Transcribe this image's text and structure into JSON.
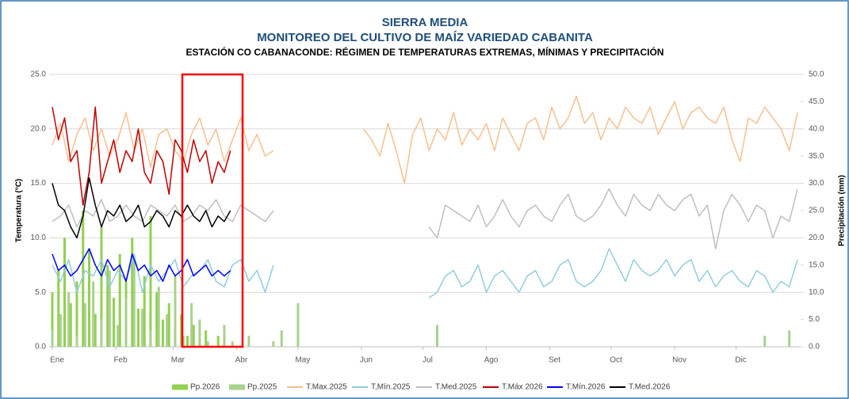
{
  "chart_data": {
    "type": "line",
    "title": "SIERRA MEDIA",
    "subtitle": "MONITOREO DEL CULTIVO DE MAÍZ VARIEDAD CABANITA",
    "heading": "ESTACIÓN CO CABANACONDE: RÉGIMEN DE TEMPERATURAS EXTREMAS, MÍNIMAS Y PRECIPITACIÓN",
    "ylabel": "Temperatura (°C)",
    "y2label": "Precipitación (mm)",
    "xlim": [
      1,
      365
    ],
    "xticks": [
      {
        "value": 1,
        "label": "Ene"
      },
      {
        "value": 32,
        "label": "Feb"
      },
      {
        "value": 60,
        "label": "Mar"
      },
      {
        "value": 91,
        "label": "Abr"
      },
      {
        "value": 121,
        "label": "May"
      },
      {
        "value": 152,
        "label": "Jun"
      },
      {
        "value": 182,
        "label": "Jul"
      },
      {
        "value": 213,
        "label": "Ago"
      },
      {
        "value": 244,
        "label": "Set"
      },
      {
        "value": 274,
        "label": "Oct"
      },
      {
        "value": 305,
        "label": "Nov"
      },
      {
        "value": 335,
        "label": "Dic"
      }
    ],
    "ylim": [
      0,
      25
    ],
    "yticks": [
      {
        "value": 0,
        "label": "0.0"
      },
      {
        "value": 5,
        "label": "5.0"
      },
      {
        "value": 10,
        "label": "10.0"
      },
      {
        "value": 15,
        "label": "15.0"
      },
      {
        "value": 20,
        "label": "20.0"
      },
      {
        "value": 25,
        "label": "25.0"
      }
    ],
    "y2lim": [
      0,
      50
    ],
    "y2ticks": [
      {
        "value": 0,
        "label": "0.0"
      },
      {
        "value": 5,
        "label": "5.0"
      },
      {
        "value": 10,
        "label": "10.0"
      },
      {
        "value": 15,
        "label": "15.0"
      },
      {
        "value": 20,
        "label": "20.0"
      },
      {
        "value": 25,
        "label": "25.0"
      },
      {
        "value": 30,
        "label": "30.0"
      },
      {
        "value": 35,
        "label": "35.0"
      },
      {
        "value": 40,
        "label": "40.0"
      },
      {
        "value": 45,
        "label": "45.0"
      },
      {
        "value": 50,
        "label": "50.0"
      }
    ],
    "grid": true,
    "series": [
      {
        "name": "Pp.2026",
        "type": "bar",
        "axis": "y2",
        "color": "#92d050",
        "x": [
          1,
          4,
          7,
          10,
          13,
          16,
          19,
          22,
          25,
          28,
          31,
          34,
          37,
          40,
          43,
          46,
          49,
          52,
          55,
          58,
          61,
          64,
          67,
          70,
          73,
          76,
          79,
          82,
          85,
          88
        ],
        "values": [
          10,
          14,
          20,
          8,
          12,
          25,
          18,
          6,
          22,
          15,
          9,
          17,
          12,
          20,
          7,
          13,
          24,
          10,
          5,
          8,
          3,
          6,
          2,
          4,
          1,
          3,
          0,
          2,
          1,
          0
        ]
      },
      {
        "name": "Pp.2025",
        "type": "bar",
        "axis": "y2",
        "color": "#a9d18e",
        "x": [
          1,
          5,
          9,
          13,
          17,
          21,
          25,
          29,
          33,
          37,
          41,
          45,
          49,
          53,
          57,
          61,
          65,
          69,
          73,
          77,
          81,
          85,
          89,
          93,
          97,
          101,
          105,
          109,
          113,
          117,
          121,
          125,
          129,
          133,
          137,
          141,
          145,
          149,
          153,
          157,
          161,
          165,
          169,
          173,
          177,
          181,
          185,
          189,
          193,
          197,
          201,
          205,
          209,
          213,
          217,
          221,
          225,
          229,
          233,
          237,
          241,
          245,
          249,
          253,
          257,
          261,
          265,
          269,
          273,
          277,
          281,
          285,
          289,
          293,
          297,
          301,
          305,
          309,
          313,
          317,
          321,
          325,
          329,
          333,
          337,
          341,
          345,
          349,
          353,
          357,
          361,
          365
        ],
        "values": [
          3,
          6,
          10,
          2,
          8,
          12,
          5,
          14,
          4,
          9,
          16,
          7,
          3,
          11,
          6,
          13,
          2,
          8,
          5,
          1,
          0,
          4,
          1,
          0,
          2,
          0,
          0,
          1,
          3,
          0,
          8,
          0,
          0,
          0,
          0,
          0,
          0,
          0,
          0,
          0,
          0,
          0,
          0,
          0,
          0,
          0,
          0,
          4,
          0,
          0,
          0,
          0,
          0,
          0,
          0,
          0,
          0,
          0,
          0,
          0,
          0,
          0,
          0,
          0,
          0,
          0,
          0,
          0,
          0,
          0,
          0,
          0,
          0,
          0,
          0,
          0,
          0,
          0,
          0,
          0,
          0,
          0,
          0,
          0,
          0,
          0,
          0,
          2,
          0,
          0,
          3,
          0
        ]
      },
      {
        "name": "T.Max.2025",
        "color": "#f8c08f",
        "x": [
          1,
          5,
          9,
          13,
          17,
          21,
          25,
          29,
          33,
          37,
          41,
          45,
          49,
          53,
          57,
          61,
          65,
          69,
          73,
          77,
          81,
          85,
          89,
          93,
          97,
          101,
          105,
          109,
          113,
          117,
          121,
          125,
          129,
          133,
          137,
          141,
          145,
          149,
          153,
          157,
          161,
          165,
          169,
          173,
          177,
          181,
          185,
          189,
          193,
          197,
          201,
          205,
          209,
          213,
          217,
          221,
          225,
          229,
          233,
          237,
          241,
          245,
          249,
          253,
          257,
          261,
          265,
          269,
          273,
          277,
          281,
          285,
          289,
          293,
          297,
          301,
          305,
          309,
          313,
          317,
          321,
          325,
          329,
          333,
          337,
          341,
          345,
          349,
          353,
          357,
          361,
          365
        ],
        "values": [
          18.5,
          20.5,
          17,
          19.5,
          21,
          18,
          20,
          17.5,
          19,
          21.5,
          18,
          20,
          16.5,
          19.5,
          20,
          18,
          17,
          19.5,
          21,
          18.5,
          20,
          17,
          19,
          21,
          18,
          19.5,
          17.5,
          18,
          null,
          null,
          null,
          null,
          null,
          null,
          null,
          null,
          null,
          null,
          20,
          19,
          17.5,
          20.5,
          18,
          15,
          19.5,
          21,
          18,
          20,
          19,
          21.5,
          18.5,
          20,
          19,
          20.5,
          18,
          21,
          19.5,
          18,
          20.5,
          21,
          19,
          22,
          20,
          21,
          23,
          20.5,
          21.5,
          19,
          21,
          20,
          22,
          21,
          20.5,
          22,
          19.5,
          21,
          22.5,
          20,
          21.5,
          22,
          21,
          20.5,
          22,
          19,
          17,
          21,
          20.5,
          22,
          21,
          20,
          18,
          21.5
        ]
      },
      {
        "name": "T,Mín.2025",
        "color": "#92cddc",
        "x": [
          1,
          5,
          9,
          13,
          17,
          21,
          25,
          29,
          33,
          37,
          41,
          45,
          49,
          53,
          57,
          61,
          65,
          69,
          73,
          77,
          81,
          85,
          89,
          93,
          97,
          101,
          105,
          109,
          113,
          117,
          121,
          125,
          129,
          133,
          137,
          141,
          145,
          149,
          153,
          157,
          161,
          165,
          169,
          173,
          177,
          181,
          185,
          189,
          193,
          197,
          201,
          205,
          209,
          213,
          217,
          221,
          225,
          229,
          233,
          237,
          241,
          245,
          249,
          253,
          257,
          261,
          265,
          269,
          273,
          277,
          281,
          285,
          289,
          293,
          297,
          301,
          305,
          309,
          313,
          317,
          321,
          325,
          329,
          333,
          337,
          341,
          345,
          349,
          353,
          357,
          361,
          365
        ],
        "values": [
          7.5,
          6,
          8,
          5,
          7,
          6.5,
          8,
          5.5,
          7,
          6,
          8.5,
          5,
          7.5,
          6,
          7,
          8,
          5.5,
          6.5,
          7,
          8,
          6,
          5.5,
          7.5,
          8,
          6,
          7,
          5,
          7.5,
          null,
          null,
          null,
          null,
          null,
          null,
          null,
          null,
          null,
          null,
          null,
          null,
          null,
          null,
          null,
          null,
          null,
          null,
          4.5,
          5,
          6.5,
          7,
          5.5,
          6,
          7.5,
          5,
          6.5,
          7,
          6,
          5,
          6.5,
          7,
          5.5,
          6,
          7.5,
          8,
          6,
          5.5,
          6,
          7,
          9,
          7.5,
          6,
          8,
          7,
          6.5,
          7,
          8,
          6.5,
          7.5,
          8,
          6,
          7,
          5.5,
          6.5,
          7,
          6,
          5.5,
          7,
          6.5,
          5,
          6,
          5.5,
          8
        ]
      },
      {
        "name": "T.Med.2025",
        "color": "#bfbfbf",
        "x": [
          1,
          5,
          9,
          13,
          17,
          21,
          25,
          29,
          33,
          37,
          41,
          45,
          49,
          53,
          57,
          61,
          65,
          69,
          73,
          77,
          81,
          85,
          89,
          93,
          97,
          101,
          105,
          109,
          113,
          117,
          121,
          125,
          129,
          133,
          137,
          141,
          145,
          149,
          153,
          157,
          161,
          165,
          169,
          173,
          177,
          181,
          185,
          189,
          193,
          197,
          201,
          205,
          209,
          213,
          217,
          221,
          225,
          229,
          233,
          237,
          241,
          245,
          249,
          253,
          257,
          261,
          265,
          269,
          273,
          277,
          281,
          285,
          289,
          293,
          297,
          301,
          305,
          309,
          313,
          317,
          321,
          325,
          329,
          333,
          337,
          341,
          345,
          349,
          353,
          357,
          361,
          365
        ],
        "values": [
          11.5,
          12,
          13,
          11,
          12.5,
          12,
          13.5,
          11.5,
          12,
          13,
          12,
          11.5,
          13,
          12.5,
          12,
          13,
          11.5,
          12,
          13,
          12.5,
          13.5,
          12,
          11.5,
          13,
          12.5,
          12,
          11.5,
          12.5,
          null,
          null,
          null,
          null,
          null,
          null,
          null,
          null,
          null,
          null,
          null,
          null,
          null,
          null,
          null,
          null,
          null,
          null,
          11,
          10,
          13,
          12.5,
          12,
          11.5,
          13,
          11,
          12,
          13.5,
          12,
          11,
          12.5,
          13,
          12,
          11.5,
          13,
          14,
          12,
          11.5,
          12,
          13,
          14.5,
          13,
          12,
          14,
          13,
          12.5,
          14,
          13,
          12.5,
          13.5,
          14,
          12,
          13,
          9,
          12.5,
          14,
          13,
          11.5,
          13,
          12.5,
          10,
          12,
          11.5,
          14.5
        ]
      },
      {
        "name": "T.Máx 2026",
        "color": "#c00000",
        "x": [
          1,
          4,
          7,
          10,
          13,
          16,
          19,
          22,
          25,
          28,
          31,
          34,
          37,
          40,
          43,
          46,
          49,
          52,
          55,
          58,
          61,
          64,
          67,
          70,
          73,
          76,
          79,
          82,
          85,
          88
        ],
        "values": [
          22,
          19,
          21,
          17,
          18,
          13,
          16,
          22,
          15,
          17,
          19,
          16,
          18,
          17,
          20,
          16,
          15,
          18,
          17,
          14,
          19,
          18,
          16,
          19,
          17,
          18,
          15,
          17,
          16,
          18
        ]
      },
      {
        "name": "T.Mín.2026",
        "color": "#0000ff",
        "x": [
          1,
          4,
          7,
          10,
          13,
          16,
          19,
          22,
          25,
          28,
          31,
          34,
          37,
          40,
          43,
          46,
          49,
          52,
          55,
          58,
          61,
          64,
          67,
          70,
          73,
          76,
          79,
          82,
          85,
          88
        ],
        "values": [
          8.5,
          7,
          7.5,
          6.5,
          7,
          8,
          9,
          7.5,
          6.5,
          8,
          7,
          7.5,
          6,
          8.5,
          7,
          7.5,
          6.5,
          7,
          6,
          7.5,
          6.5,
          7,
          8,
          6.5,
          7,
          7.5,
          6.5,
          7,
          6.5,
          7
        ]
      },
      {
        "name": "T.Med.2026",
        "color": "#000000",
        "x": [
          1,
          4,
          7,
          10,
          13,
          16,
          19,
          22,
          25,
          28,
          31,
          34,
          37,
          40,
          43,
          46,
          49,
          52,
          55,
          58,
          61,
          64,
          67,
          70,
          73,
          76,
          79,
          82,
          85,
          88
        ],
        "values": [
          15,
          13,
          12.5,
          11,
          10,
          12,
          15.5,
          13,
          11,
          12.5,
          12,
          13,
          11.5,
          12,
          13,
          11,
          11.5,
          12.5,
          12,
          11,
          12.5,
          12,
          13,
          12,
          11.5,
          12.5,
          11,
          12,
          11.5,
          12.5
        ]
      }
    ]
  }
}
